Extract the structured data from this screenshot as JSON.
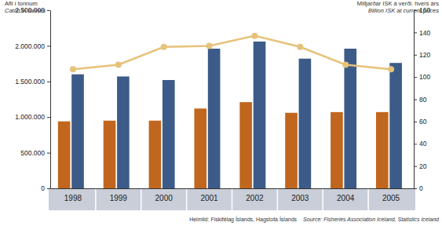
{
  "chart_data": {
    "type": "bar",
    "ylabel": [
      "Afli í tonnum",
      "Catch in tonnes"
    ],
    "y2label": [
      "Milljarðar ISK á verðl. hvers árs",
      "Billion ISK at current prices"
    ],
    "annotations": [
      "Heimild: Fiskifélag Íslands, Hagstofa Íslands",
      "Source: Fisheries Association Iceland, Statistics Iceland"
    ],
    "categories": [
      "1998",
      "1999",
      "2000",
      "2001",
      "2002",
      "2003",
      "2004",
      "2005"
    ],
    "series": [
      {
        "type": "bar",
        "color": "#c0661e",
        "values": [
          940000,
          950000,
          950000,
          1120000,
          1210000,
          1060000,
          1070000,
          1070000
        ]
      },
      {
        "type": "bar",
        "color": "#3c5b88",
        "values": [
          1600000,
          1570000,
          1520000,
          1960000,
          2060000,
          1820000,
          1960000,
          1760000
        ]
      },
      {
        "type": "line",
        "axis": "y2",
        "marker": "circle",
        "color": "#e6c27a",
        "values": [
          107,
          111,
          127,
          128,
          137,
          127,
          111,
          107
        ]
      }
    ],
    "ylim": [
      0,
      2500000
    ],
    "yticks": [
      0,
      {
        "value": 500000,
        "label": "500.000"
      },
      {
        "value": 1000000,
        "label": "1.000.000"
      },
      {
        "value": 1500000,
        "label": "1.500.000"
      },
      {
        "value": 2000000,
        "label": "2.000.000"
      },
      {
        "value": 2500000,
        "label": "2.500.000"
      }
    ],
    "y2lim": [
      0,
      160
    ],
    "y2ticks": [
      0,
      20,
      40,
      60,
      80,
      100,
      120,
      140,
      160
    ],
    "grid": false
  }
}
